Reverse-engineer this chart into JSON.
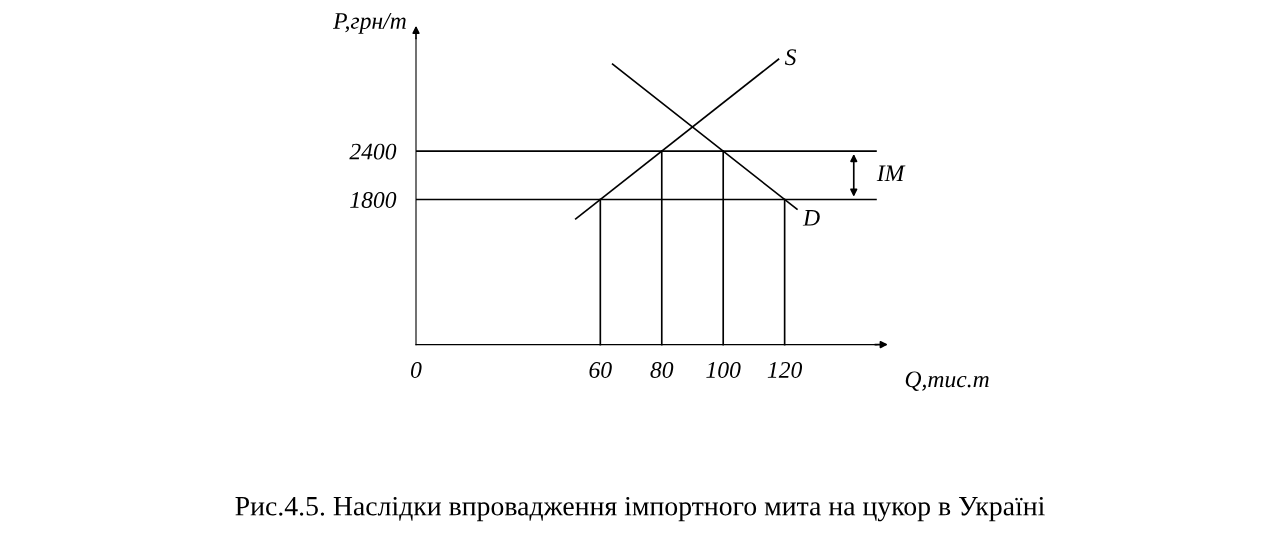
{
  "chart_data": {
    "type": "line",
    "xlabel": "Q,тис.т",
    "ylabel": "P,грн/т",
    "xlim": [
      0,
      150
    ],
    "ylim": [
      0,
      3800
    ],
    "xticks": [
      0,
      60,
      80,
      100,
      120
    ],
    "yticks": [
      1800,
      2400
    ],
    "series": [
      {
        "name": "S",
        "color": "#000000",
        "x": [
          52,
          118
        ],
        "values": [
          1560,
          3540
        ]
      },
      {
        "name": "D",
        "color": "#000000",
        "x": [
          64,
          124
        ],
        "values": [
          3480,
          1680
        ]
      },
      {
        "color": "#000000",
        "x": [
          60,
          60
        ],
        "values": [
          0,
          1800
        ]
      },
      {
        "color": "#000000",
        "x": [
          80,
          80
        ],
        "values": [
          0,
          2400
        ]
      },
      {
        "color": "#000000",
        "x": [
          100,
          100
        ],
        "values": [
          0,
          2400
        ]
      },
      {
        "color": "#000000",
        "x": [
          120,
          120
        ],
        "values": [
          0,
          1800
        ]
      }
    ],
    "ref_lines": [
      {
        "axis": "y",
        "value": 2400,
        "color": "#000000"
      },
      {
        "axis": "y",
        "value": 1800,
        "color": "#000000"
      }
    ],
    "annotations": [
      "IM",
      "Рис.4.5. Наслідки впровадження імпортного мита на цукор в Україні"
    ],
    "grid": false,
    "legend": false,
    "marker": "none",
    "line_style": "solid"
  }
}
